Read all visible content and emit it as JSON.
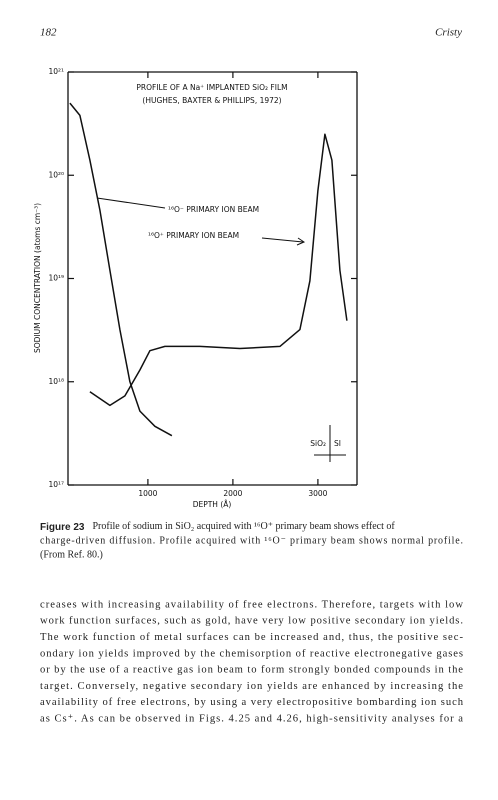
{
  "header": {
    "page": "182",
    "author": "Cristy"
  },
  "chart_data": {
    "type": "line",
    "annotations": [
      "PROFILE OF A Na⁺ IMPLANTED SiO₂ FILM",
      "(HUGHES, BAXTER & PHILLIPS, 1972)",
      "¹⁶O⁻ PRIMARY ION BEAM",
      "¹⁶O⁺ PRIMARY ION BEAM",
      "SiO₂",
      "SI"
    ],
    "y_label": "SODIUM CONCENTRATION (atoms cm⁻³)",
    "x_label": "DEPTH (Å)",
    "log_y": true,
    "xlim": [
      60,
      3460
    ],
    "xticks": [
      1000,
      2000,
      3000
    ],
    "ylim": [
      1e+17,
      1e+21
    ],
    "yticks": [
      {
        "value": 1e+17,
        "label": "10¹⁷"
      },
      {
        "value": 1e+18,
        "label": "10¹⁸"
      },
      {
        "value": 1e+19,
        "label": "10¹⁹"
      },
      {
        "value": 1e+20,
        "label": "10²⁰"
      },
      {
        "value": 1e+21,
        "label": "10²¹"
      }
    ],
    "series": [
      {
        "name": "¹⁶O⁻ primary ion beam",
        "color": "#111111",
        "x": [
          82,
          200,
          318,
          435,
          553,
          671,
          788,
          906,
          1082,
          1282
        ],
        "values": [
          5e+20,
          3.8e+20,
          1.4e+20,
          4.6e+19,
          1.2e+19,
          3.2e+18,
          1e+18,
          5.2e+17,
          3.7e+17,
          3e+17
        ]
      },
      {
        "name": "¹⁶O⁺ primary ion beam",
        "color": "#111111",
        "x": [
          318,
          553,
          729,
          906,
          1024,
          1200,
          1612,
          2082,
          2553,
          2788,
          2906,
          3000,
          3082,
          3165,
          3259,
          3341
        ],
        "values": [
          8e+17,
          5.9e+17,
          7.3e+17,
          1.3e+18,
          2e+18,
          2.2e+18,
          2.2e+18,
          2.1e+18,
          2.2e+18,
          3.2e+18,
          9.5e+18,
          7.1e+19,
          2.5e+20,
          1.4e+20,
          1.2e+19,
          3.9e+18
        ]
      }
    ]
  },
  "caption": {
    "label": "Figure 23",
    "lines": [
      "Profile of sodium in SiO₂ acquired with ¹⁶O⁺ primary beam shows effect of",
      "charge-driven diffusion. Profile acquired with ¹⁶O⁻ primary beam shows normal profile.",
      "(From Ref. 80.)"
    ]
  },
  "body": {
    "lines": [
      "creases with increasing availability of free electrons. Therefore, targets with low",
      "work function surfaces, such as gold, have very low positive secondary ion yields.",
      "The work function of metal surfaces can be increased and, thus, the positive sec-",
      "ondary ion yields improved by the chemisorption of reactive electronegative gases",
      "or by the use of a reactive gas ion beam to form strongly bonded compounds in the",
      "target. Conversely, negative secondary ion yields are enhanced by increasing the",
      "availability of free electrons, by using a very electropositive bombarding ion such",
      "as Cs⁺. As can be observed in Figs. 4.25 and 4.26, high-sensitivity analyses for a"
    ]
  }
}
